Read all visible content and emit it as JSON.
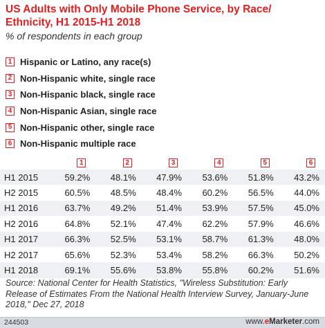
{
  "title": "US Adults with Only Mobile Phone Service, by Race/ Ethnicity, H1 2015-H1 2018",
  "subtitle": "% of respondents in each group",
  "legend": [
    {
      "num": "1",
      "label": "Hispanic or Latino, any race(s)"
    },
    {
      "num": "2",
      "label": "Non-Hispanic white, single race"
    },
    {
      "num": "3",
      "label": "Non-Hispanic black, single race"
    },
    {
      "num": "4",
      "label": "Non-Hispanic Asian, single race"
    },
    {
      "num": "5",
      "label": "Non-Hispanic other, single race"
    },
    {
      "num": "6",
      "label": "Non-Hispanic multiple race"
    }
  ],
  "columns": [
    "1",
    "2",
    "3",
    "4",
    "5",
    "6"
  ],
  "rows": [
    {
      "label": "H1 2015",
      "cells": [
        "59.2%",
        "48.1%",
        "47.9%",
        "53.6%",
        "51.8%",
        "43.2%"
      ]
    },
    {
      "label": "H2 2015",
      "cells": [
        "60.5%",
        "48.5%",
        "48.4%",
        "60.2%",
        "56.5%",
        "44.0%"
      ]
    },
    {
      "label": "H1 2016",
      "cells": [
        "63.7%",
        "49.2%",
        "51.4%",
        "53.9%",
        "57.5%",
        "45.0%"
      ]
    },
    {
      "label": "H2 2016",
      "cells": [
        "64.8%",
        "52.1%",
        "47.4%",
        "62.2%",
        "57.9%",
        "46.6%"
      ]
    },
    {
      "label": "H1 2017",
      "cells": [
        "66.3%",
        "52.5%",
        "53.1%",
        "58.7%",
        "61.3%",
        "48.0%"
      ]
    },
    {
      "label": "H2 2017",
      "cells": [
        "65.6%",
        "52.3%",
        "53.4%",
        "58.2%",
        "66.3%",
        "50.2%"
      ]
    },
    {
      "label": "H1 2018",
      "cells": [
        "69.1%",
        "55.6%",
        "53.8%",
        "55.8%",
        "60.2%",
        "51.6%"
      ]
    }
  ],
  "source": "Source: National Center for Health Statistics, \"Wireless Substitution: Early Release of Estimates From the National Health Interview Survey, January-June 2018,\" Dec 27, 2018",
  "footer": {
    "id": "244503",
    "brand_prefix": "www.",
    "brand_e": "e",
    "brand_name": "Marketer",
    "brand_suffix": ".com"
  },
  "colors": {
    "accent": "#e41e1e",
    "stripe": "#eef0f4",
    "footer_bg": "#d8dbe1"
  },
  "chart_data": {
    "type": "table",
    "title": "US Adults with Only Mobile Phone Service, by Race/ Ethnicity, H1 2015-H1 2018",
    "subtitle": "% of respondents in each group",
    "categories": [
      "H1 2015",
      "H2 2015",
      "H1 2016",
      "H2 2016",
      "H1 2017",
      "H2 2017",
      "H1 2018"
    ],
    "series": [
      {
        "name": "Hispanic or Latino, any race(s)",
        "values": [
          59.2,
          60.5,
          63.7,
          64.8,
          66.3,
          65.6,
          69.1
        ]
      },
      {
        "name": "Non-Hispanic white, single race",
        "values": [
          48.1,
          48.5,
          49.2,
          52.1,
          52.5,
          52.3,
          55.6
        ]
      },
      {
        "name": "Non-Hispanic black, single race",
        "values": [
          47.9,
          48.4,
          51.4,
          47.4,
          53.1,
          53.4,
          53.8
        ]
      },
      {
        "name": "Non-Hispanic Asian, single race",
        "values": [
          53.6,
          60.2,
          53.9,
          62.2,
          58.7,
          58.2,
          55.8
        ]
      },
      {
        "name": "Non-Hispanic other, single race",
        "values": [
          51.8,
          56.5,
          57.5,
          57.9,
          61.3,
          66.3,
          60.2
        ]
      },
      {
        "name": "Non-Hispanic multiple race",
        "values": [
          43.2,
          44.0,
          45.0,
          46.6,
          48.0,
          50.2,
          51.6
        ]
      }
    ]
  }
}
